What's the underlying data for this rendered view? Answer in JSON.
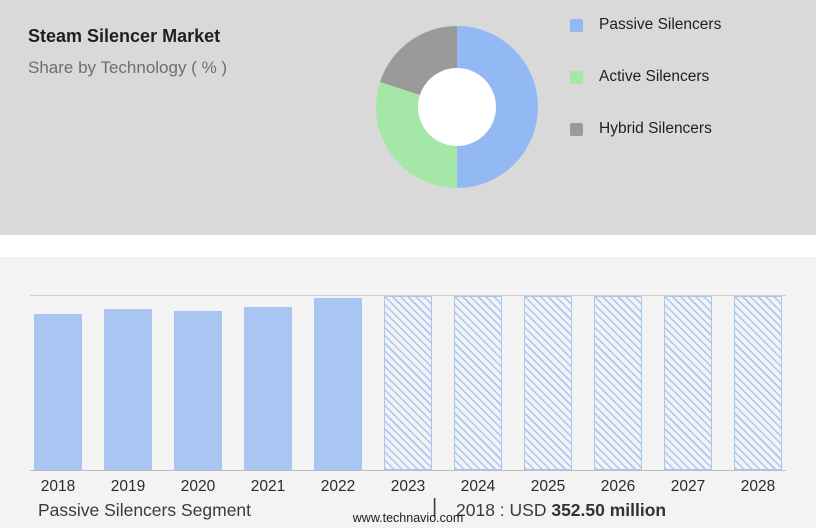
{
  "header": {
    "title": "Steam Silencer Market",
    "subtitle": "Share by Technology ( % )"
  },
  "donut": {
    "legend": [
      {
        "label": "Passive Silencers",
        "color": "#93B9F5"
      },
      {
        "label": "Active Silencers",
        "color": "#A5E7A6"
      },
      {
        "label": "Hybrid Silencers",
        "color": "#9A9A9A"
      }
    ],
    "hole_color": "#FFFFFF"
  },
  "chart_data": [
    {
      "type": "pie",
      "donut": true,
      "title": "Steam Silencer Market — Share by Technology ( % )",
      "labels": [
        "Passive Silencers",
        "Active Silencers",
        "Hybrid Silencers"
      ],
      "values": [
        50,
        30,
        20
      ],
      "colors": [
        "#93B9F5",
        "#A5E7A6",
        "#9A9A9A"
      ],
      "legend_position": "right",
      "start_angle_deg": 0
    },
    {
      "type": "bar",
      "categories": [
        "2018",
        "2019",
        "2020",
        "2021",
        "2022",
        "2023",
        "2024",
        "2025",
        "2026",
        "2027",
        "2028"
      ],
      "values": [
        352.5,
        362,
        358,
        367,
        388,
        392,
        392,
        392,
        392,
        392,
        392
      ],
      "unit": "USD million",
      "ylim": [
        0,
        392
      ],
      "bar_color": "#A9C6F3",
      "forecast_from": "2023",
      "forecast_style": "hatched",
      "grid": false,
      "annotation": "2018 : USD 352.50 million"
    }
  ],
  "footer": {
    "segment_label": "Passive Silencers Segment",
    "separator": "|",
    "value_prefix": "2018 : USD",
    "value_bold": "352.50 million",
    "website": "www.technavio.com"
  },
  "colors": {
    "top_panel_bg": "#D9D9D9",
    "bottom_panel_bg": "#F3F3F3",
    "divider_bg": "#FFFFFF"
  }
}
